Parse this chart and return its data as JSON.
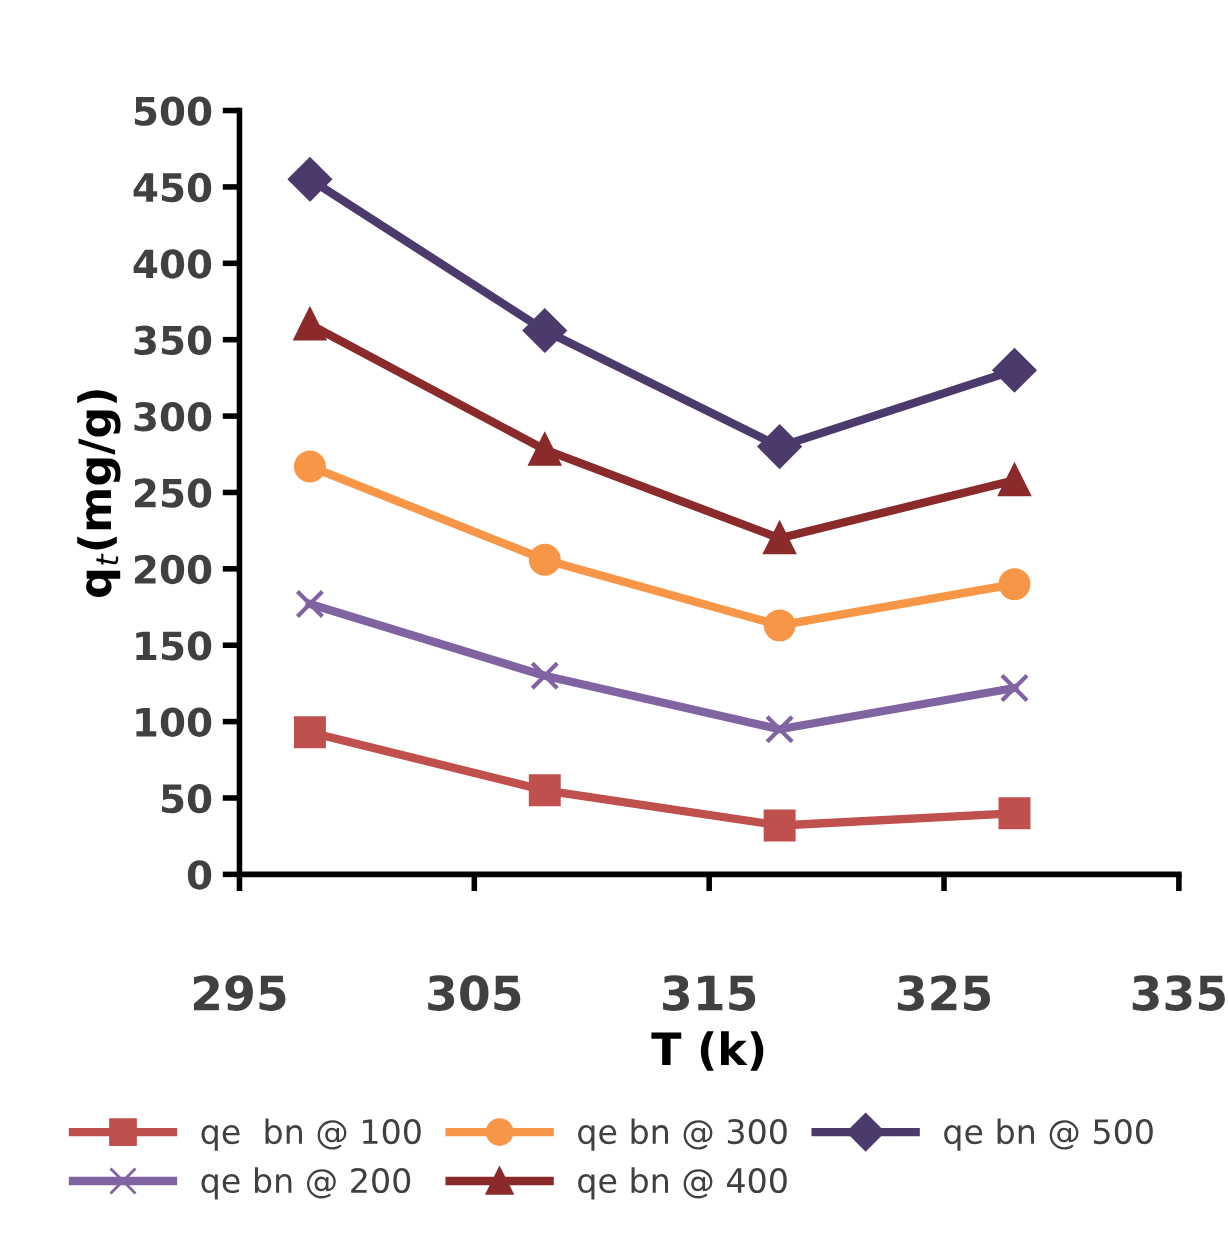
{
  "chart_data": {
    "type": "line",
    "xlabel": "T (k)",
    "ylabel": "q$_{t}$(mg/g)",
    "x": [
      298,
      308,
      318,
      328
    ],
    "series": [
      {
        "name": "qe  bn @ 100",
        "color": "#c0504d",
        "marker": "square",
        "values": [
          93,
          55,
          32,
          40
        ]
      },
      {
        "name": "qe bn @ 200",
        "color": "#8064a2",
        "marker": "cross",
        "values": [
          177,
          130,
          95,
          122
        ]
      },
      {
        "name": "qe bn @ 300",
        "color": "#f79646",
        "marker": "circle",
        "values": [
          267,
          206,
          163,
          190
        ]
      },
      {
        "name": "qe bn @ 400",
        "color": "#8b2a2a",
        "marker": "triangle",
        "values": [
          360,
          278,
          220,
          258
        ]
      },
      {
        "name": "qe bn @ 500",
        "color": "#4b3a6b",
        "marker": "diamond",
        "values": [
          455,
          356,
          280,
          330
        ]
      }
    ],
    "xlim": [
      295,
      335
    ],
    "xticks": [
      295,
      305,
      315,
      325,
      335
    ],
    "ylim": [
      0,
      500
    ],
    "yticks": [
      0,
      50,
      100,
      150,
      200,
      250,
      300,
      350,
      400,
      450,
      500
    ],
    "grid": false,
    "legend": "bottom",
    "line_style": "solid"
  }
}
